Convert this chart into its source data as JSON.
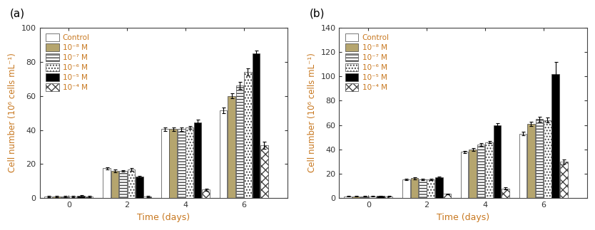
{
  "panel_a": {
    "title": "(a)",
    "ylabel": "Cell number (10⁶ cells mL⁻¹)",
    "xlabel": "Time (days)",
    "ylim": [
      0,
      100
    ],
    "yticks": [
      0,
      20,
      40,
      60,
      80,
      100
    ],
    "time_points": [
      0,
      2,
      4,
      6
    ],
    "series": [
      {
        "label": "Control",
        "values": [
          1.0,
          17.5,
          40.5,
          51.5
        ],
        "errors": [
          0.3,
          0.8,
          1.0,
          1.5
        ],
        "color": "white",
        "hatch": "",
        "edgecolor": "#444444"
      },
      {
        "label": "10⁻⁸ M",
        "values": [
          1.0,
          16.0,
          40.5,
          60.0
        ],
        "errors": [
          0.3,
          0.8,
          1.0,
          1.5
        ],
        "color": "#b5a56e",
        "hatch": "",
        "edgecolor": "#444444"
      },
      {
        "label": "10⁻⁷ M",
        "values": [
          1.0,
          16.0,
          40.5,
          66.0
        ],
        "errors": [
          0.3,
          0.5,
          1.0,
          2.0
        ],
        "color": "white",
        "hatch": "----",
        "edgecolor": "#444444"
      },
      {
        "label": "10⁻⁶ M",
        "values": [
          1.0,
          17.0,
          41.5,
          74.0
        ],
        "errors": [
          0.3,
          0.8,
          1.0,
          2.0
        ],
        "color": "white",
        "hatch": "....",
        "edgecolor": "#444444"
      },
      {
        "label": "10⁻⁵ M",
        "values": [
          1.5,
          12.5,
          44.5,
          85.0
        ],
        "errors": [
          0.3,
          0.5,
          1.5,
          1.5
        ],
        "color": "black",
        "hatch": "",
        "edgecolor": "#444444"
      },
      {
        "label": "10⁻⁴ M",
        "values": [
          1.0,
          1.0,
          5.0,
          31.0
        ],
        "errors": [
          0.3,
          0.3,
          0.5,
          2.0
        ],
        "color": "white",
        "hatch": "xxx",
        "edgecolor": "#444444"
      }
    ]
  },
  "panel_b": {
    "title": "(b)",
    "ylabel": "Cell number (10⁶ cells mL⁻¹)",
    "xlabel": "Time (days)",
    "ylim": [
      0,
      140
    ],
    "yticks": [
      0,
      20,
      40,
      60,
      80,
      100,
      120,
      140
    ],
    "time_points": [
      0,
      2,
      4,
      6
    ],
    "series": [
      {
        "label": "Control",
        "values": [
          1.5,
          15.5,
          38.0,
          53.0
        ],
        "errors": [
          0.3,
          0.8,
          1.0,
          1.5
        ],
        "color": "white",
        "hatch": "",
        "edgecolor": "#444444"
      },
      {
        "label": "10⁻⁸ M",
        "values": [
          1.5,
          16.5,
          40.0,
          61.0
        ],
        "errors": [
          0.3,
          0.8,
          1.0,
          1.5
        ],
        "color": "#b5a56e",
        "hatch": "",
        "edgecolor": "#444444"
      },
      {
        "label": "10⁻⁷ M",
        "values": [
          1.5,
          15.5,
          44.0,
          65.0
        ],
        "errors": [
          0.3,
          0.5,
          1.0,
          2.0
        ],
        "color": "white",
        "hatch": "----",
        "edgecolor": "#444444"
      },
      {
        "label": "10⁻⁶ M",
        "values": [
          1.5,
          15.5,
          46.0,
          64.0
        ],
        "errors": [
          0.3,
          0.8,
          1.0,
          2.0
        ],
        "color": "white",
        "hatch": "....",
        "edgecolor": "#444444"
      },
      {
        "label": "10⁻⁵ M",
        "values": [
          2.0,
          17.0,
          60.0,
          102.0
        ],
        "errors": [
          0.3,
          0.5,
          1.5,
          10.0
        ],
        "color": "black",
        "hatch": "",
        "edgecolor": "#444444"
      },
      {
        "label": "10⁻⁴ M",
        "values": [
          1.5,
          3.5,
          8.0,
          30.0
        ],
        "errors": [
          0.3,
          0.3,
          1.0,
          1.5
        ],
        "color": "white",
        "hatch": "xxx",
        "edgecolor": "#444444"
      }
    ]
  },
  "text_color": "#c87820",
  "label_color": "#c87820",
  "tick_color": "#333333",
  "spine_color": "#444444",
  "bar_width": 0.28,
  "legend_fontsize": 7.5,
  "axis_label_fontsize": 9,
  "tick_fontsize": 8,
  "title_fontsize": 11
}
